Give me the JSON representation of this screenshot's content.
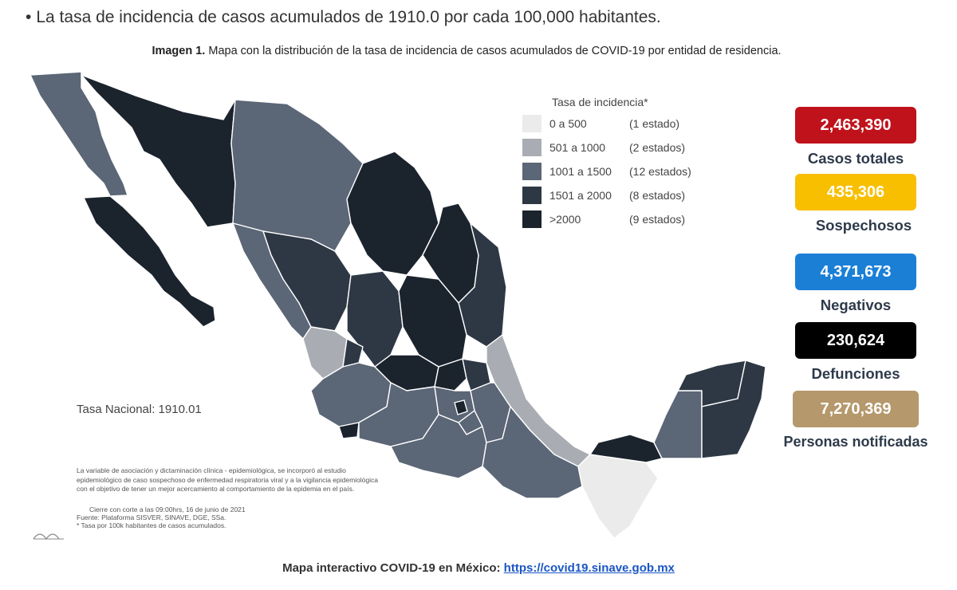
{
  "headline": "La tasa de incidencia de casos acumulados de 1910.0 por cada 100,000 habitantes.",
  "caption": {
    "label": "Imagen 1.",
    "text": "Mapa con la distribución de la tasa de incidencia de casos acumulados de COVID-19 por entidad de residencia."
  },
  "legend": {
    "title": "Tasa de incidencia*",
    "items": [
      {
        "range": "0 a  500",
        "count": "(1 estado)",
        "color": "#ebebeb"
      },
      {
        "range": "501 a  1000",
        "count": "(2 estados)",
        "color": "#a9adb3"
      },
      {
        "range": "1001 a  1500",
        "count": "(12 estados)",
        "color": "#5b6676"
      },
      {
        "range": "1501 a  2000",
        "count": "(8 estados)",
        "color": "#2e3845"
      },
      {
        "range": ">2000",
        "count": "(9 estados)",
        "color": "#1b232d"
      }
    ]
  },
  "national_rate": "Tasa Nacional: 1910.01",
  "notes": {
    "line1": "La variable de asociación y dictaminación clínica - epidemiológica, se incorporó al estudio",
    "line2": "epidemiológico de caso sospechoso de enfermedad respiratoria viral y a la vigilancia epidemiológica",
    "line3": "con el objetivo de tener un mejor acercamiento al comportamiento de la epidemia en el país.",
    "cut": "Cierre con corte a las 09:00hrs, 16 de junio de 2021",
    "source": "Fuente: Plataforma SISVER, SINAVE, DGE, SSa.",
    "footnote": "* Tasa por 100k habitantes de casos acumulados."
  },
  "stats": [
    {
      "value": "2,463,390",
      "label": "Casos totales",
      "color": "#c0121b"
    },
    {
      "value": "435,306",
      "label": "Sospechosos",
      "color": "#f7bf00"
    },
    {
      "value": "4,371,673",
      "label": "Negativos",
      "color": "#1b7fd6"
    },
    {
      "value": "230,624",
      "label": "Defunciones",
      "color": "#000000"
    },
    {
      "value": "7,270,369",
      "label": "Personas notificadas",
      "color": "#b5986b"
    }
  ],
  "footer": {
    "label": "Mapa interactivo COVID-19 en México:",
    "link": "https://covid19.sinave.gob.mx"
  }
}
